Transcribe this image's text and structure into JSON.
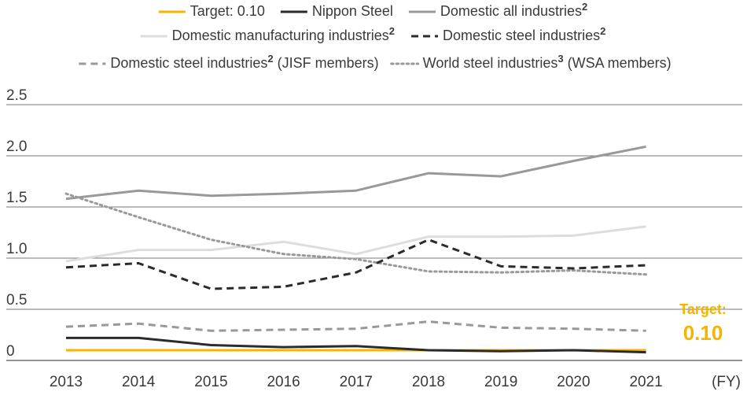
{
  "chart_data": {
    "type": "line",
    "title": "",
    "xlabel": "(FY)",
    "ylabel": "",
    "x": [
      "2013",
      "2014",
      "2015",
      "2016",
      "2017",
      "2018",
      "2019",
      "2020",
      "2021"
    ],
    "yticks": [
      "0",
      "0.5",
      "1.0",
      "1.5",
      "2.0",
      "2.5"
    ],
    "ylim": [
      0,
      2.5
    ],
    "grid": true,
    "legend_position": "top",
    "series": [
      {
        "name": "Target: 0.10",
        "sup": "",
        "suffix": "",
        "color": "#F5B400",
        "style": "solid",
        "values": [
          0.1,
          0.1,
          0.1,
          0.1,
          0.1,
          0.1,
          0.1,
          0.1,
          0.1
        ]
      },
      {
        "name": "Nippon Steel",
        "sup": "",
        "suffix": "",
        "color": "#2b2b2b",
        "style": "solid",
        "values": [
          0.22,
          0.22,
          0.15,
          0.13,
          0.14,
          0.1,
          0.09,
          0.1,
          0.08
        ]
      },
      {
        "name": "Domestic all industries",
        "sup": "2",
        "suffix": "",
        "color": "#999999",
        "style": "solid",
        "values": [
          1.58,
          1.66,
          1.61,
          1.63,
          1.66,
          1.83,
          1.8,
          1.95,
          2.09
        ]
      },
      {
        "name": "Domestic manufacturing industries",
        "sup": "2",
        "suffix": "",
        "color": "#dddddd",
        "style": "solid",
        "values": [
          0.97,
          1.08,
          1.08,
          1.16,
          1.04,
          1.21,
          1.21,
          1.22,
          1.31
        ]
      },
      {
        "name": "Domestic steel industries",
        "sup": "2",
        "suffix": "",
        "color": "#2b2b2b",
        "style": "dashed",
        "values": [
          0.91,
          0.95,
          0.7,
          0.72,
          0.86,
          1.18,
          0.92,
          0.9,
          0.93
        ]
      },
      {
        "name": "Domestic steel industries",
        "sup": "2",
        "suffix": " (JISF members)",
        "color": "#999999",
        "style": "dashed",
        "values": [
          0.33,
          0.36,
          0.29,
          0.3,
          0.31,
          0.38,
          0.32,
          0.31,
          0.29
        ]
      },
      {
        "name": "World steel industries",
        "sup": "3",
        "suffix": " (WSA members)",
        "color": "#999999",
        "style": "dotted",
        "values": [
          1.63,
          1.4,
          1.18,
          1.04,
          0.99,
          0.87,
          0.86,
          0.88,
          0.84
        ]
      }
    ],
    "annotation": {
      "label": "Target:",
      "value": "0.10",
      "color": "#F5B400"
    }
  }
}
